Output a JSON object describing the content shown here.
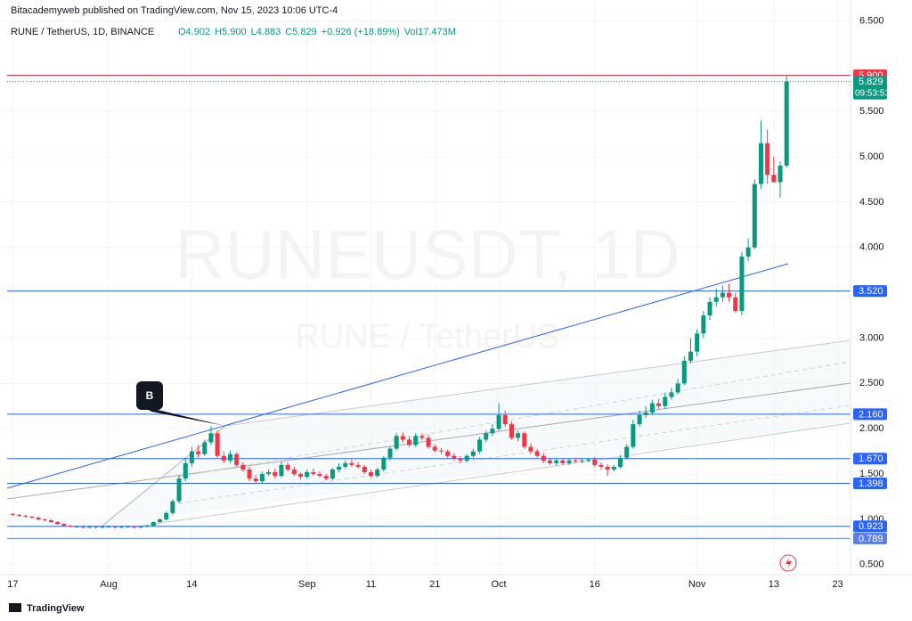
{
  "header": {
    "publisher": "Bitacademyweb published on TradingView.com, Nov 15, 2023 10:06 UTC-4",
    "symbol": "RUNE / TetherUS, 1D, BINANCE",
    "legend": [
      "O4.902",
      "H5.900",
      "L4.883",
      "C5.829",
      "+0.926 (+18.89%)",
      "Vol17.473M"
    ]
  },
  "watermark": {
    "main": "RUNEUSDT, 1D",
    "sub": "RUNE / TetherUS"
  },
  "footer": {
    "brand": "TradingView"
  },
  "callout": {
    "label": "B"
  },
  "chart_data": {
    "type": "candlestick",
    "up_color": "#089981",
    "down_color": "#f23645",
    "grid": true,
    "x": [
      "Jul 17",
      "Jul 18",
      "Jul 19",
      "Jul 20",
      "Jul 21",
      "Jul 22",
      "Jul 23",
      "Jul 24",
      "Jul 25",
      "Jul 26",
      "Jul 27",
      "Jul 28",
      "Jul 29",
      "Jul 30",
      "Jul 31",
      "Aug 1",
      "Aug 2",
      "Aug 3",
      "Aug 4",
      "Aug 5",
      "Aug 6",
      "Aug 7",
      "Aug 8",
      "Aug 9",
      "Aug 10",
      "Aug 11",
      "Aug 12",
      "Aug 13",
      "Aug 14",
      "Aug 15",
      "Aug 16",
      "Aug 17",
      "Aug 18",
      "Aug 19",
      "Aug 20",
      "Aug 21",
      "Aug 22",
      "Aug 23",
      "Aug 24",
      "Aug 25",
      "Aug 26",
      "Aug 27",
      "Aug 28",
      "Aug 29",
      "Aug 30",
      "Aug 31",
      "Sep 1",
      "Sep 2",
      "Sep 3",
      "Sep 4",
      "Sep 5",
      "Sep 6",
      "Sep 7",
      "Sep 8",
      "Sep 9",
      "Sep 10",
      "Sep 11",
      "Sep 12",
      "Sep 13",
      "Sep 14",
      "Sep 15",
      "Sep 16",
      "Sep 17",
      "Sep 18",
      "Sep 19",
      "Sep 20",
      "Sep 21",
      "Sep 22",
      "Sep 23",
      "Sep 24",
      "Sep 25",
      "Sep 26",
      "Sep 27",
      "Sep 28",
      "Sep 29",
      "Sep 30",
      "Oct 1",
      "Oct 2",
      "Oct 3",
      "Oct 4",
      "Oct 5",
      "Oct 6",
      "Oct 7",
      "Oct 8",
      "Oct 9",
      "Oct 10",
      "Oct 11",
      "Oct 12",
      "Oct 13",
      "Oct 14",
      "Oct 15",
      "Oct 16",
      "Oct 17",
      "Oct 18",
      "Oct 19",
      "Oct 20",
      "Oct 21",
      "Oct 22",
      "Oct 23",
      "Oct 24",
      "Oct 25",
      "Oct 26",
      "Oct 27",
      "Oct 28",
      "Oct 29",
      "Oct 30",
      "Oct 31",
      "Nov 1",
      "Nov 2",
      "Nov 3",
      "Nov 4",
      "Nov 5",
      "Nov 6",
      "Nov 7",
      "Nov 8",
      "Nov 9",
      "Nov 10",
      "Nov 11",
      "Nov 12",
      "Nov 13",
      "Nov 14",
      "Nov 15"
    ],
    "open": [
      1.06,
      1.05,
      1.04,
      1.03,
      1.02,
      1.0,
      0.99,
      0.97,
      0.95,
      0.93,
      0.92,
      0.92,
      0.91,
      0.92,
      0.91,
      0.92,
      0.92,
      0.91,
      0.92,
      0.92,
      0.91,
      0.92,
      0.93,
      0.97,
      1.0,
      1.07,
      1.2,
      1.45,
      1.62,
      1.75,
      1.72,
      1.85,
      1.95,
      1.7,
      1.65,
      1.72,
      1.6,
      1.55,
      1.45,
      1.42,
      1.5,
      1.52,
      1.48,
      1.6,
      1.55,
      1.5,
      1.47,
      1.52,
      1.5,
      1.48,
      1.45,
      1.55,
      1.58,
      1.62,
      1.6,
      1.58,
      1.52,
      1.48,
      1.55,
      1.68,
      1.78,
      1.92,
      1.88,
      1.82,
      1.92,
      1.9,
      1.8,
      1.76,
      1.75,
      1.7,
      1.67,
      1.65,
      1.7,
      1.75,
      1.88,
      1.95,
      2.0,
      2.15,
      2.05,
      1.9,
      1.95,
      1.8,
      1.75,
      1.7,
      1.65,
      1.62,
      1.65,
      1.62,
      1.65,
      1.64,
      1.65,
      1.66,
      1.6,
      1.58,
      1.55,
      1.58,
      1.68,
      1.8,
      2.05,
      2.15,
      2.18,
      2.28,
      2.25,
      2.35,
      2.4,
      2.5,
      2.75,
      2.85,
      3.05,
      3.25,
      3.4,
      3.45,
      3.5,
      3.45,
      3.3,
      3.9,
      4.0,
      4.7,
      5.15,
      4.8,
      4.72,
      4.902
    ],
    "high": [
      1.07,
      1.06,
      1.05,
      1.04,
      1.03,
      1.01,
      1.0,
      0.98,
      0.96,
      0.94,
      0.93,
      0.93,
      0.93,
      0.93,
      0.93,
      0.93,
      0.93,
      0.93,
      0.93,
      0.93,
      0.93,
      0.94,
      0.98,
      1.01,
      1.09,
      1.22,
      1.48,
      1.68,
      1.8,
      1.82,
      1.88,
      2.03,
      1.98,
      1.75,
      1.76,
      1.74,
      1.63,
      1.58,
      1.49,
      1.53,
      1.55,
      1.56,
      1.64,
      1.63,
      1.58,
      1.52,
      1.55,
      1.56,
      1.53,
      1.5,
      1.57,
      1.62,
      1.65,
      1.66,
      1.63,
      1.6,
      1.55,
      1.57,
      1.7,
      1.8,
      1.95,
      1.96,
      1.91,
      1.95,
      1.95,
      1.93,
      1.83,
      1.79,
      1.77,
      1.73,
      1.7,
      1.72,
      1.78,
      1.91,
      1.98,
      2.05,
      2.28,
      2.2,
      2.08,
      1.98,
      1.97,
      1.84,
      1.78,
      1.73,
      1.68,
      1.68,
      1.67,
      1.67,
      1.68,
      1.67,
      1.68,
      1.69,
      1.63,
      1.61,
      1.6,
      1.71,
      1.83,
      2.1,
      2.2,
      2.25,
      2.32,
      2.33,
      2.4,
      2.45,
      2.55,
      2.8,
      3.0,
      3.1,
      3.3,
      3.45,
      3.55,
      3.58,
      3.6,
      3.5,
      3.95,
      4.1,
      4.75,
      5.4,
      5.3,
      5.0,
      4.95,
      5.9
    ],
    "low": [
      1.04,
      1.03,
      1.02,
      1.01,
      0.99,
      0.98,
      0.96,
      0.94,
      0.92,
      0.91,
      0.91,
      0.9,
      0.9,
      0.9,
      0.9,
      0.91,
      0.9,
      0.9,
      0.91,
      0.9,
      0.9,
      0.91,
      0.92,
      0.96,
      0.99,
      1.05,
      1.18,
      1.42,
      1.58,
      1.68,
      1.7,
      1.82,
      1.68,
      1.62,
      1.62,
      1.58,
      1.53,
      1.42,
      1.39,
      1.4,
      1.48,
      1.45,
      1.46,
      1.53,
      1.48,
      1.44,
      1.45,
      1.48,
      1.46,
      1.43,
      1.43,
      1.52,
      1.56,
      1.58,
      1.56,
      1.5,
      1.46,
      1.46,
      1.53,
      1.65,
      1.76,
      1.85,
      1.8,
      1.8,
      1.87,
      1.78,
      1.74,
      1.72,
      1.68,
      1.65,
      1.62,
      1.63,
      1.68,
      1.73,
      1.85,
      1.92,
      1.98,
      2.02,
      1.88,
      1.86,
      1.78,
      1.72,
      1.68,
      1.62,
      1.6,
      1.59,
      1.6,
      1.6,
      1.62,
      1.62,
      1.63,
      1.58,
      1.55,
      1.48,
      1.53,
      1.56,
      1.66,
      1.78,
      2.02,
      2.12,
      2.15,
      2.22,
      2.22,
      2.32,
      2.38,
      2.48,
      2.72,
      2.8,
      3.0,
      3.2,
      3.35,
      3.4,
      3.4,
      3.28,
      3.25,
      3.85,
      3.98,
      4.65,
      4.7,
      4.75,
      4.55,
      4.883
    ],
    "close": [
      1.05,
      1.04,
      1.03,
      1.02,
      1.0,
      0.99,
      0.97,
      0.95,
      0.93,
      0.92,
      0.92,
      0.91,
      0.92,
      0.91,
      0.92,
      0.92,
      0.91,
      0.92,
      0.92,
      0.91,
      0.92,
      0.93,
      0.97,
      1.0,
      1.07,
      1.2,
      1.45,
      1.62,
      1.75,
      1.72,
      1.85,
      1.95,
      1.7,
      1.65,
      1.72,
      1.6,
      1.55,
      1.45,
      1.42,
      1.5,
      1.52,
      1.48,
      1.6,
      1.55,
      1.5,
      1.47,
      1.52,
      1.5,
      1.48,
      1.45,
      1.55,
      1.58,
      1.62,
      1.6,
      1.58,
      1.52,
      1.48,
      1.55,
      1.68,
      1.78,
      1.92,
      1.88,
      1.82,
      1.92,
      1.9,
      1.8,
      1.76,
      1.75,
      1.7,
      1.67,
      1.65,
      1.7,
      1.75,
      1.88,
      1.95,
      2.0,
      2.15,
      2.05,
      1.9,
      1.95,
      1.8,
      1.75,
      1.7,
      1.65,
      1.62,
      1.65,
      1.62,
      1.65,
      1.64,
      1.65,
      1.66,
      1.6,
      1.58,
      1.55,
      1.58,
      1.68,
      1.8,
      2.05,
      2.15,
      2.18,
      2.28,
      2.25,
      2.35,
      2.4,
      2.5,
      2.75,
      2.85,
      3.05,
      3.25,
      3.4,
      3.45,
      3.5,
      3.45,
      3.3,
      3.9,
      4.0,
      4.7,
      5.15,
      4.8,
      4.72,
      4.902,
      5.829
    ],
    "xlim": [
      "Jul 15",
      "Nov 25"
    ],
    "xticks": [
      {
        "value": "Jul 17",
        "label": "17"
      },
      {
        "value": "Aug 1",
        "label": "Aug"
      },
      {
        "value": "Aug 14",
        "label": "14"
      },
      {
        "value": "Sep 1",
        "label": "Sep"
      },
      {
        "value": "Sep 11",
        "label": "11"
      },
      {
        "value": "Sep 21",
        "label": "21"
      },
      {
        "value": "Oct 1",
        "label": "Oct"
      },
      {
        "value": "Oct 16",
        "label": "16"
      },
      {
        "value": "Nov 1",
        "label": "Nov"
      },
      {
        "value": "Nov 13",
        "label": "13"
      },
      {
        "value": "Nov 23",
        "label": "23"
      }
    ],
    "ylim": [
      0.39,
      6.73
    ],
    "yticks": [
      {
        "value": 6.5,
        "label": "6.500"
      },
      {
        "value": 5.5,
        "label": "5.500"
      },
      {
        "value": 5,
        "label": "5.000"
      },
      {
        "value": 4.5,
        "label": "4.500"
      },
      {
        "value": 4,
        "label": "4.000"
      },
      {
        "value": 3,
        "label": "3.000"
      },
      {
        "value": 2.5,
        "label": "2.500"
      },
      {
        "value": 2,
        "label": "2.000"
      },
      {
        "value": 1.5,
        "label": "1.500"
      },
      {
        "value": 1,
        "label": "1.000"
      },
      {
        "value": 0.5,
        "label": "0.500"
      }
    ],
    "hlines": [
      {
        "value": 5.9,
        "label": "5.900",
        "color": "#f23645"
      },
      {
        "value": 5.829,
        "label": "5.829",
        "color": "#089981",
        "dotted": true,
        "countdown": "09:53:51"
      },
      {
        "value": 3.52,
        "label": "3.520",
        "color": "#2962ff"
      },
      {
        "value": 2.16,
        "label": "2.160",
        "color": "#2962ff"
      },
      {
        "value": 1.67,
        "label": "1.670",
        "color": "#2962ff"
      },
      {
        "value": 1.398,
        "label": "1.398",
        "color": "#2962ff"
      },
      {
        "value": 0.923,
        "label": "0.923",
        "color": "#2962ff"
      },
      {
        "value": 0.789,
        "label": "0.789",
        "color": "#5b7fe0"
      }
    ]
  }
}
